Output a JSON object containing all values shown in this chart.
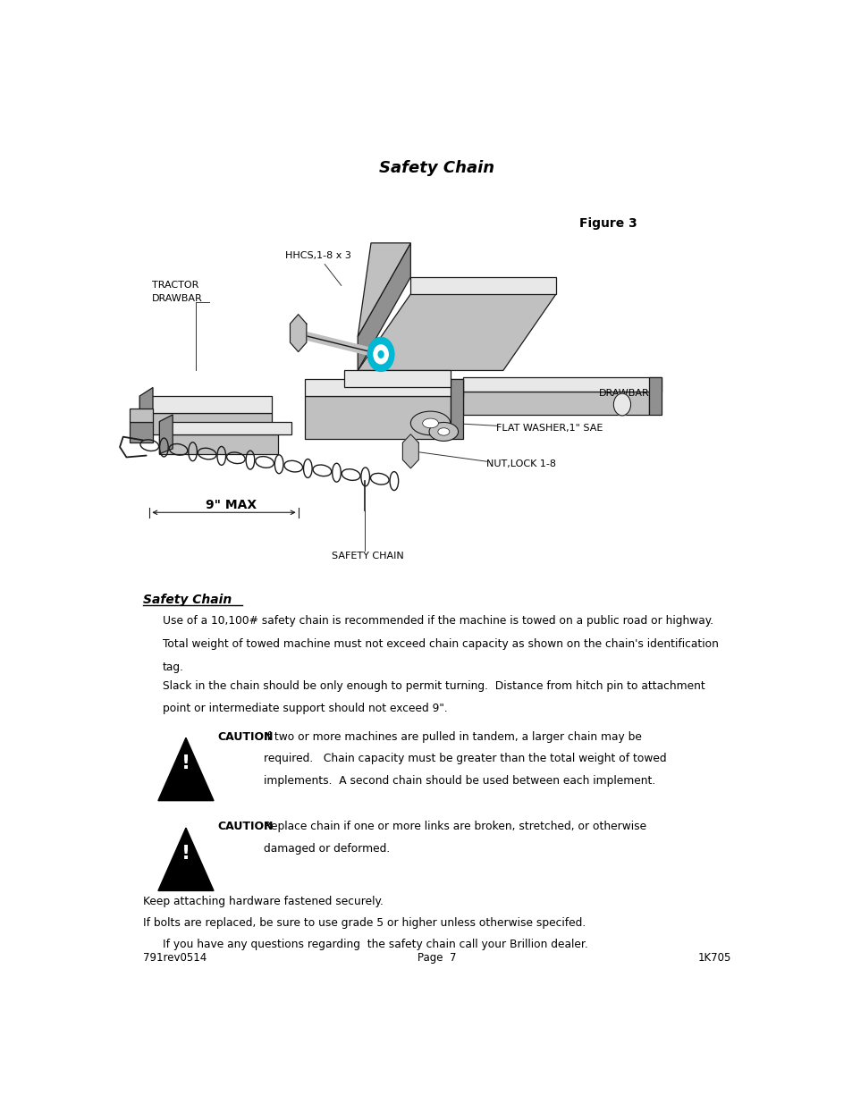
{
  "title": "Safety Chain",
  "figure_label": "Figure 3",
  "section_title": "Safety Chain",
  "para1_line1": "Use of a 10,100# safety chain is recommended if the machine is towed on a public road or highway.",
  "para1_line2": "Total weight of towed machine must not exceed chain capacity as shown on the chain's identification",
  "para1_line3": "tag.",
  "para2_line1": "Slack in the chain should be only enough to permit turning.  Distance from hitch pin to attachment",
  "para2_line2": "point or intermediate support should not exceed 9\".",
  "caution1_label": "CAUTION",
  "caution1_line1": "If two or more machines are pulled in tandem, a larger chain may be",
  "caution1_line2": "required.   Chain capacity must be greater than the total weight of towed",
  "caution1_line3": "implements.  A second chain should be used between each implement.",
  "caution2_label": "CAUTION",
  "caution2_line1": "Replace chain if one or more links are broken, stretched, or otherwise",
  "caution2_line2": "damaged or deformed.",
  "para3": "Keep attaching hardware fastened securely.",
  "para4": "If bolts are replaced, be sure to use grade 5 or higher unless otherwise specifed.",
  "para5": "If you have any questions regarding  the safety chain call your Brillion dealer.",
  "footer_left": "791rev0514",
  "footer_center": "Page  7",
  "footer_right": "1K705",
  "bg_color": "#ffffff",
  "text_color": "#000000",
  "diagram_label_hhcs": "HHCS,1-8 x 3",
  "diagram_label_tractor1": "TRACTOR",
  "diagram_label_tractor2": "DRAWBAR",
  "diagram_label_drawbar": "DRAWBAR",
  "diagram_label_washer": "FLAT WASHER,1\" SAE",
  "diagram_label_nut": "NUT,LOCK 1-8",
  "diagram_label_9max": "9\" MAX",
  "diagram_label_chain": "SAFETY CHAIN"
}
